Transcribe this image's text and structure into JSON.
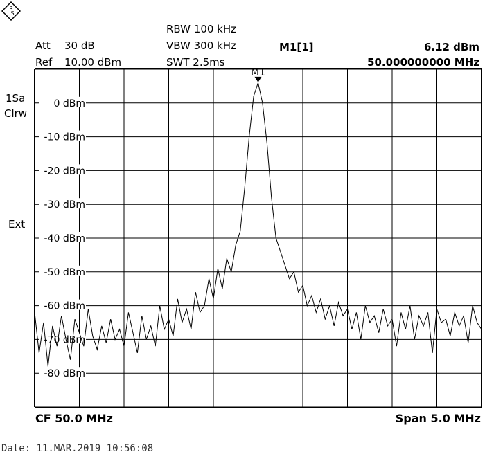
{
  "header": {
    "att_label": "Att",
    "att_value": "30 dB",
    "ref_label": "Ref",
    "ref_value": "10.00 dBm",
    "rbw": "RBW 100 kHz",
    "vbw": "VBW 300 kHz",
    "swt": "SWT 2.5ms",
    "marker_name": "M1[1]",
    "marker_level": "6.12 dBm",
    "marker_freq": "50.000000000 MHz"
  },
  "side": {
    "trace_mode_1": "1Sa",
    "trace_mode_2": "Clrw",
    "trigger": "Ext"
  },
  "footer": {
    "center": "CF 50.0 MHz",
    "span": "Span 5.0 MHz",
    "date": "Date: 11.MAR.2019  10:56:08"
  },
  "icons": {
    "logo": "rohde-schwarz-logo-icon"
  },
  "colors": {
    "trace": "#000000",
    "grid": "#000000",
    "background": "#ffffff"
  },
  "chart_data": {
    "type": "line",
    "title": "",
    "xlabel": "",
    "ylabel": "",
    "xlim": [
      47.5,
      52.5
    ],
    "ylim": [
      -90,
      10
    ],
    "x_divisions": 10,
    "y_divisions": 10,
    "y_ticks": [
      {
        "value": 0,
        "label": "0 dBm"
      },
      {
        "value": -10,
        "label": "-10 dBm"
      },
      {
        "value": -20,
        "label": "-20 dBm"
      },
      {
        "value": -30,
        "label": "-30 dBm"
      },
      {
        "value": -40,
        "label": "-40 dBm"
      },
      {
        "value": -50,
        "label": "-50 dBm"
      },
      {
        "value": -60,
        "label": "-60 dBm"
      },
      {
        "value": -70,
        "label": "-70 dBm"
      },
      {
        "value": -80,
        "label": "-80 dBm"
      }
    ],
    "marker": {
      "label": "M1",
      "x": 50.0,
      "y": 6.12
    },
    "series": [
      {
        "values_x": [
          47.5,
          47.55,
          47.6,
          47.65,
          47.7,
          47.75,
          47.8,
          47.85,
          47.9,
          47.95,
          48.0,
          48.05,
          48.1,
          48.15,
          48.2,
          48.25,
          48.3,
          48.35,
          48.4,
          48.45,
          48.5,
          48.55,
          48.6,
          48.65,
          48.7,
          48.75,
          48.8,
          48.85,
          48.9,
          48.95,
          49.0,
          49.05,
          49.1,
          49.15,
          49.2,
          49.25,
          49.3,
          49.35,
          49.4,
          49.45,
          49.5,
          49.55,
          49.6,
          49.65,
          49.7,
          49.75,
          49.8,
          49.85,
          49.9,
          49.95,
          50.0,
          50.05,
          50.1,
          50.15,
          50.2,
          50.25,
          50.3,
          50.35,
          50.4,
          50.45,
          50.5,
          50.55,
          50.6,
          50.65,
          50.7,
          50.75,
          50.8,
          50.85,
          50.9,
          50.95,
          51.0,
          51.05,
          51.1,
          51.15,
          51.2,
          51.25,
          51.3,
          51.35,
          51.4,
          51.45,
          51.5,
          51.55,
          51.6,
          51.65,
          51.7,
          51.75,
          51.8,
          51.85,
          51.9,
          51.95,
          52.0,
          52.05,
          52.1,
          52.15,
          52.2,
          52.25,
          52.3,
          52.35,
          52.4,
          52.45,
          52.5
        ],
        "values_y": [
          -62,
          -74,
          -65,
          -78,
          -66,
          -72,
          -63,
          -70,
          -76,
          -64,
          -68,
          -72,
          -61,
          -69,
          -73,
          -66,
          -71,
          -64,
          -70,
          -67,
          -72,
          -62,
          -68,
          -74,
          -63,
          -70,
          -66,
          -72,
          -60,
          -67,
          -64,
          -69,
          -58,
          -65,
          -61,
          -67,
          -56,
          -62,
          -60,
          -52,
          -58,
          -49,
          -55,
          -46,
          -50,
          -42,
          -38,
          -25,
          -10,
          2,
          6,
          0,
          -12,
          -28,
          -40,
          -44,
          -48,
          -52,
          -50,
          -56,
          -54,
          -60,
          -57,
          -62,
          -58,
          -64,
          -60,
          -66,
          -59,
          -63,
          -61,
          -67,
          -62,
          -70,
          -60,
          -65,
          -63,
          -68,
          -61,
          -66,
          -64,
          -72,
          -62,
          -67,
          -60,
          -70,
          -63,
          -66,
          -62,
          -74,
          -61,
          -65,
          -64,
          -69,
          -62,
          -66,
          -63,
          -71,
          -60,
          -65,
          -67
        ]
      }
    ]
  }
}
